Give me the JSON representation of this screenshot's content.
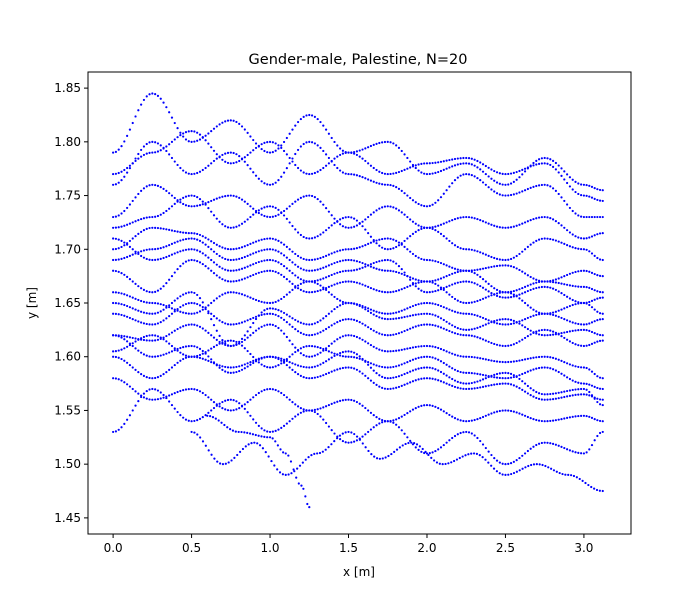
{
  "chart_data": {
    "type": "scatter",
    "title": "Gender-male, Palestine, N=20",
    "xlabel": "x [m]",
    "ylabel": "y [m]",
    "xlim": [
      -0.16,
      3.3
    ],
    "ylim": [
      1.435,
      1.865
    ],
    "xticks": [
      0.0,
      0.5,
      1.0,
      1.5,
      2.0,
      2.5,
      3.0
    ],
    "xtick_labels": [
      "0.0",
      "0.5",
      "1.0",
      "1.5",
      "2.0",
      "2.5",
      "3.0"
    ],
    "yticks": [
      1.45,
      1.5,
      1.55,
      1.6,
      1.65,
      1.7,
      1.75,
      1.8,
      1.85
    ],
    "ytick_labels": [
      "1.45",
      "1.50",
      "1.55",
      "1.60",
      "1.65",
      "1.70",
      "1.75",
      "1.80",
      "1.85"
    ],
    "grid": false,
    "marker_color": "#0000ff",
    "trajectory_count": 20,
    "series": [
      {
        "x": [
          0.0,
          0.25,
          0.5,
          0.75,
          1.0,
          1.25,
          1.5,
          1.75,
          2.0,
          2.25,
          2.5,
          2.75,
          3.0,
          3.12
        ],
        "y": [
          1.79,
          1.845,
          1.8,
          1.82,
          1.79,
          1.825,
          1.79,
          1.8,
          1.77,
          1.78,
          1.76,
          1.785,
          1.76,
          1.755
        ]
      },
      {
        "x": [
          0.0,
          0.25,
          0.5,
          0.75,
          1.0,
          1.25,
          1.5,
          1.75,
          2.0,
          2.25,
          2.5,
          2.75,
          3.0,
          3.12
        ],
        "y": [
          1.76,
          1.8,
          1.77,
          1.79,
          1.76,
          1.8,
          1.77,
          1.76,
          1.74,
          1.77,
          1.75,
          1.76,
          1.73,
          1.73
        ]
      },
      {
        "x": [
          0.0,
          0.25,
          0.5,
          0.75,
          1.0,
          1.25,
          1.5,
          1.75,
          2.0,
          2.25,
          2.5,
          2.75,
          3.0,
          3.12
        ],
        "y": [
          1.72,
          1.73,
          1.75,
          1.72,
          1.74,
          1.71,
          1.73,
          1.7,
          1.72,
          1.7,
          1.69,
          1.71,
          1.7,
          1.69
        ]
      },
      {
        "x": [
          0.0,
          0.25,
          0.5,
          0.75,
          1.0,
          1.25,
          1.5,
          1.75,
          2.0,
          2.25,
          2.5,
          2.75,
          3.0,
          3.12
        ],
        "y": [
          1.7,
          1.72,
          1.715,
          1.7,
          1.71,
          1.69,
          1.7,
          1.71,
          1.69,
          1.68,
          1.685,
          1.67,
          1.68,
          1.675
        ]
      },
      {
        "x": [
          0.0,
          0.25,
          0.5,
          0.75,
          1.0,
          1.25,
          1.5,
          1.75,
          2.0,
          2.25,
          2.5,
          2.75,
          3.0,
          3.12
        ],
        "y": [
          1.69,
          1.7,
          1.71,
          1.69,
          1.7,
          1.68,
          1.69,
          1.68,
          1.67,
          1.68,
          1.66,
          1.67,
          1.665,
          1.66
        ]
      },
      {
        "x": [
          0.0,
          0.25,
          0.5,
          0.75,
          1.0,
          1.25,
          1.5,
          1.75,
          2.0,
          2.25,
          2.5,
          2.75,
          3.0,
          3.12
        ],
        "y": [
          1.68,
          1.66,
          1.69,
          1.67,
          1.68,
          1.66,
          1.67,
          1.66,
          1.67,
          1.65,
          1.66,
          1.64,
          1.65,
          1.64
        ]
      },
      {
        "x": [
          0.0,
          0.25,
          0.5,
          0.75,
          1.0,
          1.25,
          1.5,
          1.75,
          2.0,
          2.25,
          2.5,
          2.75,
          3.0,
          3.12
        ],
        "y": [
          1.66,
          1.65,
          1.64,
          1.66,
          1.65,
          1.67,
          1.65,
          1.64,
          1.65,
          1.64,
          1.63,
          1.64,
          1.63,
          1.635
        ]
      },
      {
        "x": [
          0.0,
          0.25,
          0.5,
          0.75,
          1.0,
          1.25,
          1.5,
          1.75,
          2.0,
          2.25,
          2.5,
          2.75,
          3.0,
          3.12
        ],
        "y": [
          1.64,
          1.63,
          1.65,
          1.63,
          1.64,
          1.62,
          1.635,
          1.62,
          1.63,
          1.62,
          1.61,
          1.625,
          1.61,
          1.615
        ]
      },
      {
        "x": [
          0.0,
          0.25,
          0.5,
          0.75,
          1.0,
          1.25,
          1.5,
          1.75,
          2.0,
          2.25,
          2.5,
          2.75,
          3.0,
          3.12
        ],
        "y": [
          1.62,
          1.615,
          1.63,
          1.61,
          1.63,
          1.6,
          1.62,
          1.605,
          1.61,
          1.6,
          1.595,
          1.6,
          1.59,
          1.58
        ]
      },
      {
        "x": [
          0.0,
          0.25,
          0.5,
          0.75,
          1.0,
          1.25,
          1.5,
          1.75,
          2.0,
          2.25,
          2.5,
          2.75,
          3.0,
          3.12
        ],
        "y": [
          1.605,
          1.62,
          1.6,
          1.615,
          1.59,
          1.61,
          1.6,
          1.59,
          1.6,
          1.585,
          1.58,
          1.59,
          1.575,
          1.57
        ]
      },
      {
        "x": [
          0.0,
          0.25,
          0.5,
          0.75,
          1.0,
          1.25,
          1.5,
          1.75,
          2.0,
          2.25,
          2.5,
          2.75,
          3.0,
          3.12
        ],
        "y": [
          1.6,
          1.58,
          1.6,
          1.59,
          1.6,
          1.58,
          1.59,
          1.57,
          1.58,
          1.57,
          1.575,
          1.56,
          1.565,
          1.56
        ]
      },
      {
        "x": [
          0.0,
          0.25,
          0.5,
          0.75,
          1.0,
          1.25,
          1.5,
          1.75,
          2.0,
          2.25,
          2.5,
          2.75,
          3.0,
          3.12
        ],
        "y": [
          1.58,
          1.56,
          1.57,
          1.55,
          1.57,
          1.55,
          1.56,
          1.54,
          1.555,
          1.54,
          1.55,
          1.54,
          1.545,
          1.54
        ]
      },
      {
        "x": [
          0.0,
          0.25,
          0.5,
          0.75,
          1.0,
          1.25,
          1.5,
          1.75,
          2.0,
          2.25,
          2.5,
          2.75,
          3.0,
          3.12
        ],
        "y": [
          1.53,
          1.57,
          1.54,
          1.56,
          1.53,
          1.55,
          1.52,
          1.54,
          1.51,
          1.53,
          1.5,
          1.52,
          1.51,
          1.53
        ]
      },
      {
        "x": [
          0.5,
          0.7,
          0.9,
          1.1,
          1.3,
          1.5,
          1.7,
          1.9,
          2.1,
          2.3,
          2.5,
          2.7,
          2.9,
          3.12
        ],
        "y": [
          1.53,
          1.5,
          1.52,
          1.49,
          1.51,
          1.53,
          1.505,
          1.52,
          1.5,
          1.51,
          1.49,
          1.5,
          1.49,
          1.475
        ]
      },
      {
        "x": [
          0.0,
          0.25,
          0.5,
          0.75,
          1.0,
          1.25,
          1.5,
          1.75,
          2.0,
          2.25,
          2.5,
          2.75,
          3.0,
          3.12
        ],
        "y": [
          1.77,
          1.79,
          1.81,
          1.78,
          1.8,
          1.77,
          1.79,
          1.77,
          1.78,
          1.785,
          1.77,
          1.78,
          1.75,
          1.745
        ]
      },
      {
        "x": [
          0.0,
          0.25,
          0.5,
          0.75,
          1.0,
          1.25,
          1.5,
          1.75,
          2.0,
          2.25,
          2.5,
          2.75,
          3.0,
          3.12
        ],
        "y": [
          1.73,
          1.76,
          1.74,
          1.75,
          1.73,
          1.75,
          1.72,
          1.74,
          1.72,
          1.73,
          1.72,
          1.73,
          1.71,
          1.715
        ]
      },
      {
        "x": [
          0.0,
          0.25,
          0.5,
          0.75,
          1.0,
          1.25,
          1.5,
          1.75,
          2.0,
          2.25,
          2.5,
          2.75,
          3.0,
          3.12
        ],
        "y": [
          1.71,
          1.69,
          1.7,
          1.68,
          1.69,
          1.67,
          1.68,
          1.69,
          1.66,
          1.67,
          1.655,
          1.665,
          1.65,
          1.655
        ]
      },
      {
        "x": [
          0.0,
          0.25,
          0.5,
          0.75,
          1.0,
          1.25,
          1.5,
          1.75,
          2.0,
          2.25,
          2.5,
          2.75,
          3.0,
          3.12
        ],
        "y": [
          1.65,
          1.64,
          1.66,
          1.61,
          1.645,
          1.63,
          1.65,
          1.635,
          1.64,
          1.625,
          1.635,
          1.62,
          1.625,
          1.62
        ]
      },
      {
        "x": [
          0.0,
          0.25,
          0.5,
          0.75,
          1.0,
          1.25,
          1.5,
          1.75,
          2.0,
          2.25,
          2.5,
          2.75,
          3.0,
          3.12
        ],
        "y": [
          1.62,
          1.6,
          1.61,
          1.585,
          1.6,
          1.59,
          1.605,
          1.58,
          1.59,
          1.575,
          1.585,
          1.565,
          1.57,
          1.555
        ]
      },
      {
        "x": [
          0.6,
          0.8,
          1.0,
          1.1,
          1.2,
          1.25
        ],
        "y": [
          1.545,
          1.53,
          1.525,
          1.51,
          1.48,
          1.46
        ]
      }
    ]
  }
}
